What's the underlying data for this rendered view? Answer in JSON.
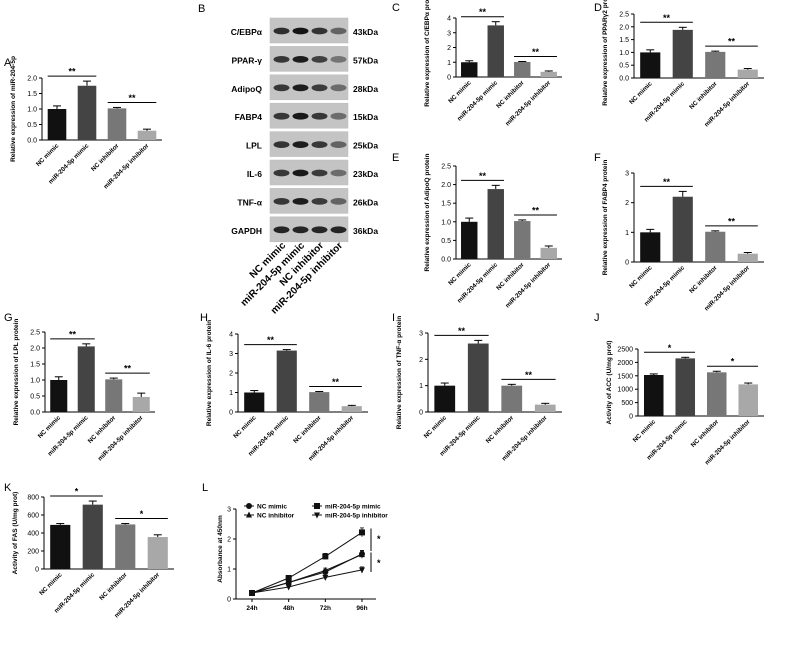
{
  "figure": {
    "x_categories": [
      "NC mimic",
      "miR-204-5p mimic",
      "NC inhibitor",
      "miR-204-5p inhibitor"
    ],
    "bar_colors": [
      "#111111",
      "#444444",
      "#777777",
      "#a8a8a8"
    ]
  },
  "western_blot": {
    "panel_label": "B",
    "proteins": [
      {
        "name": "C/EBPα",
        "size": "43kDa",
        "intensity": [
          0.85,
          1.0,
          0.82,
          0.55
        ]
      },
      {
        "name": "PPAR-γ",
        "size": "57kDa",
        "intensity": [
          0.8,
          0.95,
          0.75,
          0.45
        ]
      },
      {
        "name": "AdipoQ",
        "size": "28kDa",
        "intensity": [
          0.8,
          0.95,
          0.78,
          0.5
        ]
      },
      {
        "name": "FABP4",
        "size": "15kDa",
        "intensity": [
          0.8,
          0.98,
          0.8,
          0.5
        ]
      },
      {
        "name": "LPL",
        "size": "25kDa",
        "intensity": [
          0.82,
          0.95,
          0.8,
          0.55
        ]
      },
      {
        "name": "IL-6",
        "size": "23kDa",
        "intensity": [
          0.8,
          0.98,
          0.78,
          0.5
        ]
      },
      {
        "name": "TNF-α",
        "size": "26kDa",
        "intensity": [
          0.8,
          0.95,
          0.78,
          0.55
        ]
      },
      {
        "name": "GAPDH",
        "size": "36kDa",
        "intensity": [
          0.9,
          0.9,
          0.9,
          0.9
        ]
      }
    ],
    "lane_labels": [
      "NC mimic",
      "miR-204-5p mimic",
      "NC inhibitor",
      "miR-204-5p inhibitor"
    ]
  },
  "chart_data": [
    {
      "id": "A",
      "type": "bar",
      "categories": [
        "NC mimic",
        "miR-204-5p mimic",
        "NC inhibitor",
        "miR-204-5p inhibitor"
      ],
      "values": [
        1.0,
        1.75,
        1.02,
        0.3
      ],
      "errors": [
        0.1,
        0.15,
        0.03,
        0.05
      ],
      "ylabel": "Relative expression of miR-204-5p",
      "ylim": [
        0,
        2
      ],
      "yticks": [
        "0.0",
        "0.5",
        "1.0",
        "1.5",
        "2.0"
      ],
      "significance": [
        "**",
        "**"
      ]
    },
    {
      "id": "C",
      "type": "bar",
      "categories": [
        "NC mimic",
        "miR-204-5p mimic",
        "NC inhibitor",
        "miR-204-5p inhibitor"
      ],
      "values": [
        1.0,
        3.5,
        1.02,
        0.35
      ],
      "errors": [
        0.1,
        0.25,
        0.03,
        0.06
      ],
      "ylabel": "Relative expression of C/EBPα protein",
      "ylim": [
        0,
        4
      ],
      "yticks": [
        "0",
        "1",
        "2",
        "3",
        "4"
      ],
      "significance": [
        "**",
        "**"
      ]
    },
    {
      "id": "D",
      "type": "bar",
      "categories": [
        "NC mimic",
        "miR-204-5p mimic",
        "NC inhibitor",
        "miR-204-5p inhibitor"
      ],
      "values": [
        1.0,
        1.88,
        1.02,
        0.33
      ],
      "errors": [
        0.1,
        0.1,
        0.03,
        0.04
      ],
      "ylabel": "Relative expression of PPARγ2 protein",
      "ylim": [
        0,
        2.5
      ],
      "yticks": [
        "0.0",
        "0.5",
        "1.0",
        "1.5",
        "2.0",
        "2.5"
      ],
      "significance": [
        "**",
        "**"
      ]
    },
    {
      "id": "E",
      "type": "bar",
      "categories": [
        "NC mimic",
        "miR-204-5p mimic",
        "NC inhibitor",
        "miR-204-5p inhibitor"
      ],
      "values": [
        1.0,
        1.88,
        1.02,
        0.3
      ],
      "errors": [
        0.1,
        0.1,
        0.03,
        0.05
      ],
      "ylabel": "Relative expression of AdipoQ protein",
      "ylim": [
        0,
        2.5
      ],
      "yticks": [
        "0.0",
        "0.5",
        "1.0",
        "1.5",
        "2.0",
        "2.5"
      ],
      "significance": [
        "**",
        "**"
      ]
    },
    {
      "id": "F",
      "type": "bar",
      "categories": [
        "NC mimic",
        "miR-204-5p mimic",
        "NC inhibitor",
        "miR-204-5p inhibitor"
      ],
      "values": [
        1.0,
        2.2,
        1.02,
        0.28
      ],
      "errors": [
        0.1,
        0.18,
        0.03,
        0.04
      ],
      "ylabel": "Relative expression of FABP4 protein",
      "ylim": [
        0,
        3
      ],
      "yticks": [
        "0",
        "1",
        "2",
        "3"
      ],
      "significance": [
        "**",
        "**"
      ]
    },
    {
      "id": "G",
      "type": "bar",
      "categories": [
        "NC mimic",
        "miR-204-5p mimic",
        "NC inhibitor",
        "miR-204-5p inhibitor"
      ],
      "values": [
        1.0,
        2.05,
        1.02,
        0.47
      ],
      "errors": [
        0.1,
        0.08,
        0.04,
        0.12
      ],
      "ylabel": "Relative expression of LPL protein",
      "ylim": [
        0,
        2.5
      ],
      "yticks": [
        "0.0",
        "0.5",
        "1.0",
        "1.5",
        "2.0",
        "2.5"
      ],
      "significance": [
        "**",
        "**"
      ]
    },
    {
      "id": "H",
      "type": "bar",
      "categories": [
        "NC mimic",
        "miR-204-5p mimic",
        "NC inhibitor",
        "miR-204-5p inhibitor"
      ],
      "values": [
        1.0,
        3.15,
        1.02,
        0.3
      ],
      "errors": [
        0.1,
        0.05,
        0.03,
        0.04
      ],
      "ylabel": "Relative expression of IL-6 protein",
      "ylim": [
        0,
        4
      ],
      "yticks": [
        "0",
        "1",
        "2",
        "3",
        "4"
      ],
      "significance": [
        "**",
        "**"
      ]
    },
    {
      "id": "I",
      "type": "bar",
      "categories": [
        "NC mimic",
        "miR-204-5p mimic",
        "NC inhibitor",
        "miR-204-5p inhibitor"
      ],
      "values": [
        1.0,
        2.6,
        1.0,
        0.28
      ],
      "errors": [
        0.1,
        0.12,
        0.05,
        0.05
      ],
      "ylabel": "Relative expression of TNF-α protein",
      "ylim": [
        0,
        3
      ],
      "yticks": [
        "0",
        "1",
        "2",
        "3"
      ],
      "significance": [
        "**",
        "**"
      ]
    },
    {
      "id": "J",
      "type": "bar",
      "categories": [
        "NC mimic",
        "miR-204-5p mimic",
        "NC inhibitor",
        "miR-204-5p inhibitor"
      ],
      "values": [
        1530,
        2150,
        1630,
        1180
      ],
      "errors": [
        40,
        40,
        40,
        50
      ],
      "ylabel": "Activity of ACC (U/mg prot)",
      "ylim": [
        0,
        2500
      ],
      "yticks": [
        "0",
        "500",
        "1000",
        "1500",
        "2000",
        "2500"
      ],
      "significance": [
        "*",
        "*"
      ]
    },
    {
      "id": "K",
      "type": "bar",
      "categories": [
        "NC mimic",
        "miR-204-5p mimic",
        "NC inhibitor",
        "miR-204-5p inhibitor"
      ],
      "values": [
        490,
        715,
        495,
        355
      ],
      "errors": [
        15,
        40,
        10,
        25
      ],
      "ylabel": "Activity of FAS (U/mg prot)",
      "ylim": [
        0,
        800
      ],
      "yticks": [
        "0",
        "200",
        "400",
        "600",
        "800"
      ],
      "significance": [
        "*",
        "*"
      ]
    },
    {
      "id": "L",
      "type": "line",
      "x": [
        "24h",
        "48h",
        "72h",
        "96h"
      ],
      "ylabel": "Absorbance at 450nm",
      "ylim": [
        0,
        3
      ],
      "yticks": [
        "0",
        "1",
        "2",
        "3"
      ],
      "series": [
        {
          "name": "NC mimic",
          "marker": "circle",
          "values": [
            0.2,
            0.55,
            0.9,
            1.5
          ],
          "errors": [
            0.03,
            0.06,
            0.08,
            0.12
          ]
        },
        {
          "name": "miR-204-5p mimic",
          "marker": "square",
          "values": [
            0.2,
            0.7,
            1.42,
            2.22
          ],
          "errors": [
            0.03,
            0.06,
            0.1,
            0.15
          ]
        },
        {
          "name": "NC inhibitor",
          "marker": "triangle",
          "values": [
            0.2,
            0.55,
            0.95,
            1.48
          ],
          "errors": [
            0.03,
            0.06,
            0.08,
            0.12
          ]
        },
        {
          "name": "miR-204-5p inhibitor",
          "marker": "inverted-triangle",
          "values": [
            0.2,
            0.4,
            0.72,
            0.97
          ],
          "errors": [
            0.03,
            0.05,
            0.07,
            0.1
          ]
        }
      ],
      "significance": [
        "*",
        "*"
      ]
    }
  ]
}
